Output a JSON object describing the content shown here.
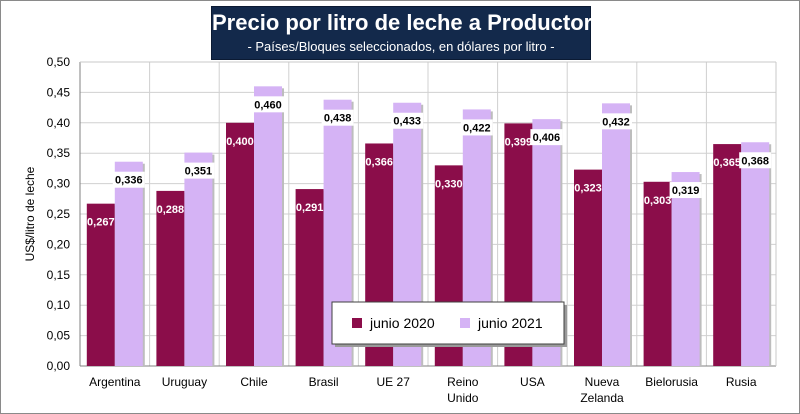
{
  "chart_data": {
    "type": "bar",
    "title": "Precio por litro de leche a Productor",
    "subtitle": "- Países/Bloques seleccionados, en dólares por litro -",
    "ylabel": "US$/litro de leche",
    "xlabel": "",
    "ylim": [
      0,
      0.5
    ],
    "yticks": [
      "0,00",
      "0,05",
      "0,10",
      "0,15",
      "0,20",
      "0,25",
      "0,30",
      "0,35",
      "0,40",
      "0,45",
      "0,50"
    ],
    "categories": [
      [
        "Argentina"
      ],
      [
        "Uruguay"
      ],
      [
        "Chile"
      ],
      [
        "Brasil"
      ],
      [
        "UE 27"
      ],
      [
        "Reino",
        "Unido"
      ],
      [
        "USA"
      ],
      [
        "Nueva",
        "Zelanda"
      ],
      [
        "Bielorusia"
      ],
      [
        "Rusia"
      ]
    ],
    "series": [
      {
        "name": "junio 2020",
        "color": "#8b0d4a",
        "values": [
          0.267,
          0.288,
          0.4,
          0.291,
          0.366,
          0.33,
          0.399,
          0.323,
          0.303,
          0.365
        ],
        "labels": [
          "0,267",
          "0,288",
          "0,400",
          "0,291",
          "0,366",
          "0,330",
          "0,399",
          "0,323",
          "0,303",
          "0,365"
        ]
      },
      {
        "name": "junio 2021",
        "color": "#d5b3f5",
        "values": [
          0.336,
          0.351,
          0.46,
          0.438,
          0.433,
          0.422,
          0.406,
          0.432,
          0.319,
          0.368
        ],
        "labels": [
          "0,336",
          "0,351",
          "0,460",
          "0,438",
          "0,433",
          "0,422",
          "0,406",
          "0,432",
          "0,319",
          "0,368"
        ]
      }
    ],
    "legend": [
      "junio 2020",
      "junio 2021"
    ],
    "grid": true
  }
}
